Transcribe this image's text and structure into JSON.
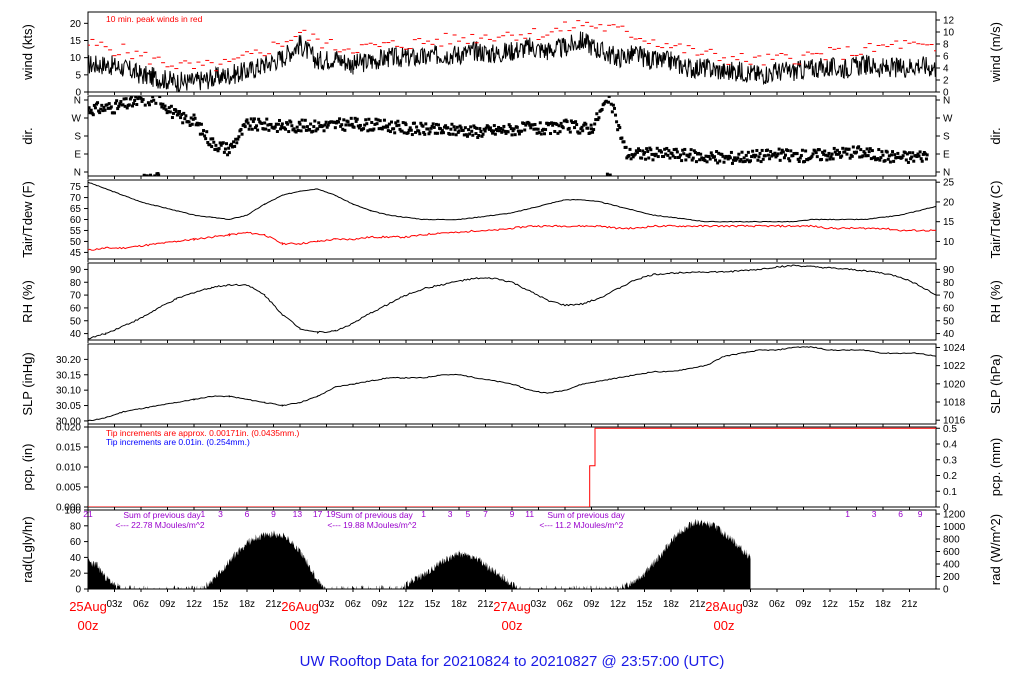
{
  "title": "UW Rooftop Data for 20210824  to  20210827 @ 23:57:00  (UTC)",
  "colors": {
    "main": "#000000",
    "peak": "#ff0000",
    "dew": "#ff0000",
    "pcp": "#ff0000",
    "note_blue": "#0000ff",
    "note_purple": "#9900cc",
    "title": "#1a1ae6",
    "day_label": "#ff0000"
  },
  "x_axis": {
    "start_hour": 0,
    "end_hour": 96,
    "hour_ticks": [
      {
        "hour": 3,
        "label": "03z"
      },
      {
        "hour": 6,
        "label": "06z"
      },
      {
        "hour": 9,
        "label": "09z"
      },
      {
        "hour": 12,
        "label": "12z"
      },
      {
        "hour": 15,
        "label": "15z"
      },
      {
        "hour": 18,
        "label": "18z"
      },
      {
        "hour": 21,
        "label": "21z"
      },
      {
        "hour": 27,
        "label": "03z"
      },
      {
        "hour": 30,
        "label": "06z"
      },
      {
        "hour": 33,
        "label": "09z"
      },
      {
        "hour": 36,
        "label": "12z"
      },
      {
        "hour": 39,
        "label": "15z"
      },
      {
        "hour": 42,
        "label": "18z"
      },
      {
        "hour": 45,
        "label": "21z"
      },
      {
        "hour": 51,
        "label": "03z"
      },
      {
        "hour": 54,
        "label": "06z"
      },
      {
        "hour": 57,
        "label": "09z"
      },
      {
        "hour": 60,
        "label": "12z"
      },
      {
        "hour": 63,
        "label": "15z"
      },
      {
        "hour": 66,
        "label": "18z"
      },
      {
        "hour": 69,
        "label": "21z"
      },
      {
        "hour": 75,
        "label": "03z"
      },
      {
        "hour": 78,
        "label": "06z"
      },
      {
        "hour": 81,
        "label": "09z"
      },
      {
        "hour": 84,
        "label": "12z"
      },
      {
        "hour": 87,
        "label": "15z"
      },
      {
        "hour": 90,
        "label": "18z"
      },
      {
        "hour": 93,
        "label": "21z"
      }
    ],
    "day_labels": [
      {
        "hour": 0,
        "date": "25Aug",
        "time": "00z"
      },
      {
        "hour": 24,
        "date": "26Aug",
        "time": "00z"
      },
      {
        "hour": 48,
        "date": "27Aug",
        "time": "00z"
      },
      {
        "hour": 72,
        "date": "28Aug",
        "time": "00z"
      }
    ]
  },
  "chart_data": [
    {
      "type": "line",
      "panel": "wind",
      "left_label": "wind (kts)",
      "right_label": "wind (m/s)",
      "ylim": [
        0,
        23.3
      ],
      "y2lim": [
        0,
        12
      ],
      "left_ticks": [
        "0",
        "5",
        "10",
        "15",
        "20"
      ],
      "right_ticks": [
        "0",
        "2",
        "4",
        "6",
        "8",
        "10",
        "12"
      ],
      "annotation": "10 min. peak winds in red",
      "series": [
        {
          "role": "wind",
          "x": [
            0,
            2,
            4,
            6,
            8,
            10,
            12,
            14,
            16,
            18,
            20,
            22,
            24,
            26,
            28,
            30,
            32,
            34,
            36,
            38,
            40,
            42,
            44,
            46,
            48,
            50,
            52,
            54,
            56,
            58,
            60,
            62,
            64,
            66,
            68,
            70,
            72,
            74,
            76,
            78,
            80,
            82,
            84,
            86,
            88,
            90,
            92,
            94,
            96
          ],
          "y": [
            8,
            8,
            7,
            5,
            4,
            3,
            3,
            4,
            5,
            6,
            8,
            10,
            14,
            9,
            10,
            8,
            9,
            10,
            10,
            10,
            11,
            11,
            12,
            11,
            12,
            13,
            12,
            13,
            15,
            12,
            10,
            11,
            9,
            9,
            7,
            7,
            6,
            6,
            5,
            6,
            6,
            7,
            7,
            7,
            8,
            7,
            7,
            8,
            7
          ]
        },
        {
          "role": "peak",
          "x": [
            0,
            4,
            8,
            12,
            16,
            20,
            24,
            28,
            32,
            36,
            40,
            44,
            48,
            52,
            56,
            60,
            64,
            68,
            72,
            76,
            80,
            84,
            88,
            92,
            96
          ],
          "y": [
            14,
            12,
            9,
            7,
            8,
            12,
            17,
            13,
            13,
            14,
            15,
            16,
            17,
            17,
            20,
            18,
            15,
            12,
            10,
            9,
            10,
            11,
            12,
            14,
            12
          ]
        }
      ]
    },
    {
      "type": "scatter",
      "panel": "direction",
      "left_label": "dir.",
      "right_label": "dir.",
      "tick_labels": [
        "N",
        "E",
        "S",
        "W",
        "N"
      ],
      "ylim": [
        0,
        360
      ],
      "series": [
        {
          "role": "direction",
          "x": [
            0,
            3,
            6,
            8,
            10,
            12,
            14,
            16,
            18,
            20,
            22,
            24,
            26,
            28,
            30,
            32,
            34,
            36,
            38,
            40,
            42,
            44,
            46,
            48,
            50,
            52,
            54,
            56,
            57,
            59,
            61,
            63,
            66,
            69,
            72,
            75,
            78,
            81,
            84,
            87,
            90,
            93,
            95
          ],
          "y": [
            300,
            310,
            340,
            350,
            270,
            250,
            150,
            120,
            230,
            230,
            225,
            225,
            225,
            230,
            235,
            230,
            225,
            215,
            210,
            205,
            210,
            200,
            205,
            210,
            215,
            210,
            225,
            215,
            215,
            355,
            100,
            100,
            100,
            90,
            80,
            90,
            95,
            90,
            100,
            110,
            90,
            85,
            95
          ]
        }
      ]
    },
    {
      "type": "line",
      "panel": "temperature",
      "left_label": "Tair/Tdew (F)",
      "right_label": "Tair/Tdew (C)",
      "ylim": [
        42,
        78
      ],
      "left_ticks": [
        "45",
        "50",
        "55",
        "60",
        "65",
        "70",
        "75"
      ],
      "right_ticks": [
        "10",
        "15",
        "20",
        "25"
      ],
      "series": [
        {
          "role": "air",
          "x": [
            0,
            2,
            4,
            6,
            8,
            10,
            12,
            14,
            16,
            18,
            20,
            22,
            24,
            26,
            28,
            30,
            32,
            34,
            36,
            38,
            40,
            42,
            44,
            46,
            48,
            50,
            52,
            54,
            56,
            58,
            60,
            62,
            64,
            66,
            68,
            70,
            72,
            74,
            76,
            78,
            80,
            82,
            84,
            86,
            88,
            90,
            92,
            94,
            96
          ],
          "y": [
            77,
            74,
            71,
            68,
            66,
            64,
            62,
            61,
            60,
            62,
            67,
            71,
            73,
            74,
            71,
            67,
            64,
            62,
            61,
            60,
            60,
            60,
            61,
            62,
            63,
            65,
            67,
            69,
            69,
            68,
            66,
            64,
            62,
            61,
            60,
            59,
            59,
            59,
            59,
            59,
            59,
            60,
            60,
            60,
            60,
            61,
            62,
            64,
            66
          ]
        },
        {
          "role": "dew",
          "x": [
            0,
            2,
            4,
            6,
            8,
            10,
            12,
            14,
            16,
            18,
            20,
            22,
            24,
            26,
            28,
            30,
            32,
            34,
            36,
            38,
            40,
            42,
            44,
            46,
            48,
            50,
            52,
            54,
            56,
            58,
            60,
            62,
            64,
            66,
            68,
            70,
            72,
            74,
            76,
            78,
            80,
            82,
            84,
            86,
            88,
            90,
            92,
            94,
            96
          ],
          "y": [
            46,
            47,
            47,
            48,
            49,
            50,
            51,
            52,
            53,
            54,
            53,
            49,
            49,
            50,
            51,
            51,
            52,
            52,
            52,
            53,
            54,
            54,
            55,
            55,
            56,
            57,
            57,
            57,
            57,
            57,
            56,
            56,
            57,
            57,
            57,
            57,
            57,
            57,
            57,
            57,
            57,
            57,
            56,
            56,
            56,
            56,
            55,
            55,
            55
          ]
        }
      ]
    },
    {
      "type": "line",
      "panel": "humidity",
      "left_label": "RH (%)",
      "right_label": "RH (%)",
      "ylim": [
        35,
        95
      ],
      "left_ticks": [
        "40",
        "50",
        "60",
        "70",
        "80",
        "90"
      ],
      "right_ticks": [
        "40",
        "50",
        "60",
        "70",
        "80",
        "90"
      ],
      "series": [
        {
          "role": "rh",
          "x": [
            0,
            2,
            4,
            6,
            8,
            10,
            12,
            14,
            16,
            18,
            20,
            22,
            24,
            26,
            28,
            30,
            32,
            34,
            36,
            38,
            40,
            42,
            44,
            46,
            48,
            50,
            52,
            54,
            56,
            58,
            60,
            62,
            64,
            66,
            68,
            70,
            72,
            74,
            76,
            78,
            80,
            82,
            84,
            86,
            88,
            90,
            92,
            94,
            96
          ],
          "y": [
            36,
            40,
            46,
            52,
            60,
            67,
            72,
            76,
            78,
            78,
            70,
            55,
            44,
            41,
            42,
            48,
            56,
            63,
            70,
            75,
            78,
            81,
            83,
            83,
            80,
            73,
            66,
            62,
            63,
            68,
            75,
            82,
            86,
            87,
            88,
            88,
            88,
            89,
            90,
            92,
            93,
            92,
            91,
            90,
            89,
            87,
            84,
            78,
            70
          ]
        }
      ]
    },
    {
      "type": "line",
      "panel": "pressure",
      "left_label": "SLP (inHg)",
      "right_label": "SLP (hPa)",
      "ylim": [
        29.99,
        30.25
      ],
      "left_ticks": [
        "30.00",
        "30.05",
        "30.10",
        "30.15",
        "30.20"
      ],
      "right_ticks": [
        "1016",
        "1018",
        "1020",
        "1022",
        "1024"
      ],
      "series": [
        {
          "role": "slp",
          "x": [
            0,
            2,
            4,
            6,
            8,
            10,
            12,
            14,
            16,
            18,
            20,
            22,
            24,
            26,
            28,
            30,
            32,
            34,
            36,
            38,
            40,
            42,
            44,
            46,
            48,
            50,
            52,
            54,
            56,
            58,
            60,
            62,
            64,
            66,
            68,
            70,
            72,
            74,
            76,
            78,
            80,
            82,
            84,
            86,
            88,
            90,
            92,
            94,
            96
          ],
          "y": [
            30.0,
            30.01,
            30.03,
            30.04,
            30.05,
            30.06,
            30.07,
            30.08,
            30.08,
            30.07,
            30.06,
            30.05,
            30.06,
            30.08,
            30.11,
            30.12,
            30.13,
            30.14,
            30.14,
            30.14,
            30.15,
            30.15,
            30.14,
            30.13,
            30.12,
            30.1,
            30.09,
            30.1,
            30.12,
            30.13,
            30.14,
            30.15,
            30.16,
            30.16,
            30.17,
            30.18,
            30.21,
            30.22,
            30.23,
            30.23,
            30.24,
            30.24,
            30.23,
            30.23,
            30.23,
            30.22,
            30.22,
            30.22,
            30.21
          ]
        }
      ]
    },
    {
      "type": "line",
      "panel": "precipitation",
      "left_label": "pcp. (in)",
      "right_label": "pcp. (mm)",
      "ylim": [
        0,
        0.02
      ],
      "left_ticks": [
        "0.000",
        "0.005",
        "0.010",
        "0.015",
        "0.020"
      ],
      "right_ticks": [
        "0",
        "0.1",
        "0.2",
        "0.3",
        "0.4",
        "0.5"
      ],
      "note_red": "Tip increments are approx. 0.00171in. (0.0435mm.)",
      "note_blue": "Tip increments are 0.01in. (0.254mm.)",
      "series": [
        {
          "role": "pcp",
          "x": [
            0,
            56.8,
            56.8,
            57.4,
            57.4,
            96
          ],
          "y": [
            0,
            0,
            0.0103,
            0.0103,
            0.0197,
            0.0197
          ]
        }
      ]
    },
    {
      "type": "area",
      "panel": "radiation",
      "left_label": "rad(Lgly/hr)",
      "right_label": "rad (W/m^2)",
      "ylim": [
        0,
        100
      ],
      "left_ticks": [
        "0",
        "20",
        "40",
        "60",
        "80",
        "100"
      ],
      "right_ticks": [
        "0",
        "200",
        "400",
        "600",
        "800",
        "1000",
        "1200"
      ],
      "sun_hours": {
        "labels": [
          "21",
          "1",
          "3",
          "6",
          "9",
          "13",
          "17",
          "19",
          "1",
          "3",
          "5",
          "7",
          "9",
          "11",
          "1",
          "3",
          "6",
          "9"
        ],
        "hours": [
          0,
          13,
          15,
          18,
          21,
          23.7,
          26,
          27.5,
          38,
          41,
          43,
          45,
          48,
          50,
          86,
          89,
          92,
          94.2
        ]
      },
      "daily_notes": [
        {
          "hour": 4,
          "head": "Sum of previous day",
          "body": "<--- 22.78 MJoules/m^2"
        },
        {
          "hour": 28,
          "head": "Sum of previous day",
          "body": "<--- 19.88 MJoules/m^2"
        },
        {
          "hour": 52,
          "head": "Sum of previous day",
          "body": "<--- 11.2 MJoules/m^2"
        }
      ],
      "series": [
        {
          "role": "radiation",
          "x": [
            0,
            1,
            2,
            3,
            4,
            13,
            14,
            15,
            16,
            17,
            18,
            19,
            20,
            21,
            22,
            23,
            24,
            25,
            26,
            27,
            35,
            36,
            37,
            38,
            39,
            40,
            41,
            42,
            43,
            44,
            45,
            46,
            47,
            48,
            49,
            50,
            51,
            60,
            61,
            62,
            63,
            64,
            65,
            66,
            67,
            68,
            69,
            70,
            71,
            72,
            73,
            74,
            75
          ],
          "y": [
            35,
            30,
            15,
            5,
            0,
            0,
            10,
            22,
            35,
            48,
            58,
            65,
            68,
            70,
            68,
            60,
            48,
            30,
            10,
            0,
            0,
            5,
            12,
            18,
            25,
            35,
            40,
            45,
            42,
            38,
            30,
            22,
            15,
            5,
            0,
            0,
            0,
            0,
            5,
            12,
            20,
            32,
            45,
            60,
            72,
            80,
            85,
            82,
            80,
            70,
            62,
            50,
            40
          ]
        }
      ]
    }
  ]
}
